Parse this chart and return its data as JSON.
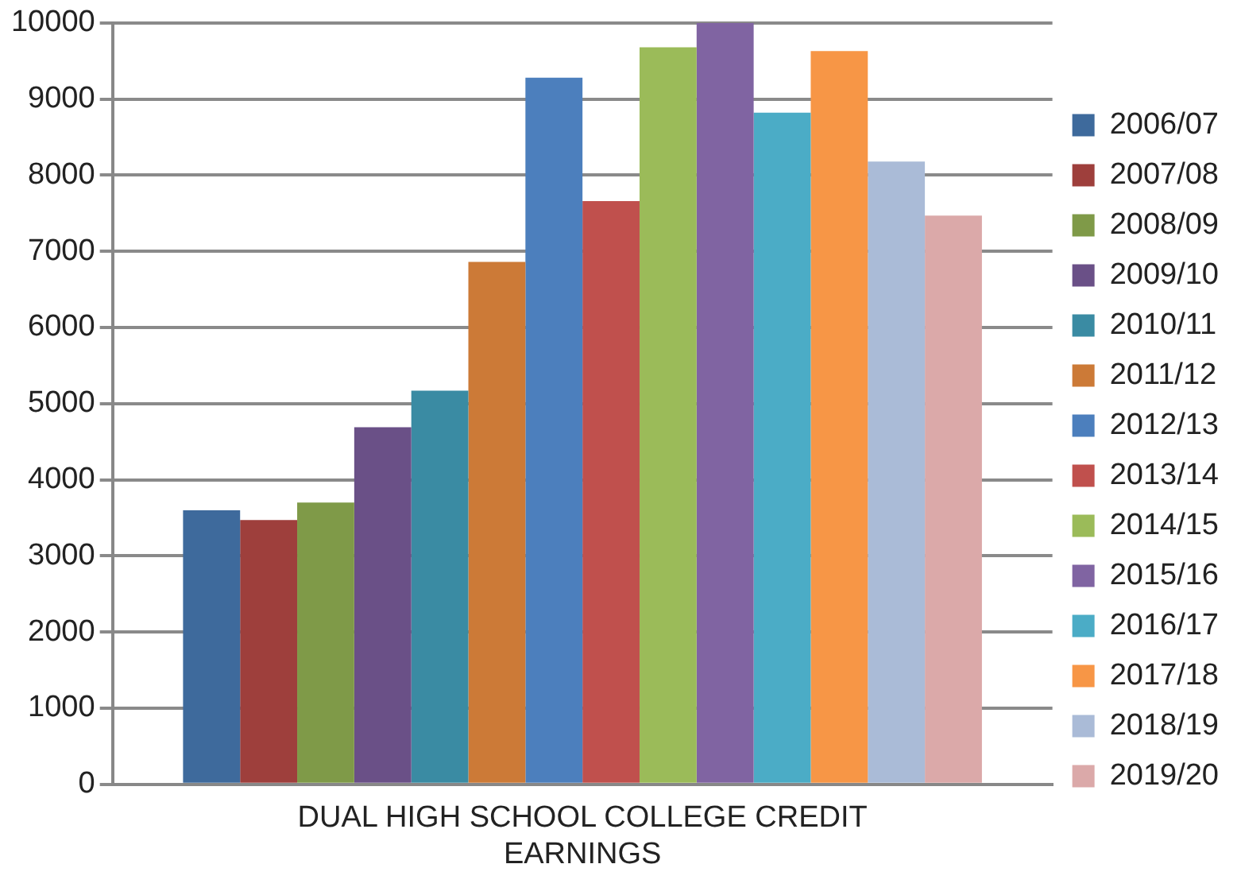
{
  "chart_data": {
    "type": "bar",
    "categories": [
      "DUAL HIGH SCHOOL COLLEGE CREDIT EARNINGS"
    ],
    "series": [
      {
        "name": "2006/07",
        "color": "#3e6a9c",
        "values": [
          3600
        ]
      },
      {
        "name": "2007/08",
        "color": "#9e3f3c",
        "values": [
          3470
        ]
      },
      {
        "name": "2008/09",
        "color": "#7f9a48",
        "values": [
          3700
        ]
      },
      {
        "name": "2009/10",
        "color": "#6a5087",
        "values": [
          4690
        ]
      },
      {
        "name": "2010/11",
        "color": "#3a8ba3",
        "values": [
          5170
        ]
      },
      {
        "name": "2011/12",
        "color": "#cc7a37",
        "values": [
          6860
        ]
      },
      {
        "name": "2012/13",
        "color": "#4c7fbd",
        "values": [
          9280
        ]
      },
      {
        "name": "2013/14",
        "color": "#c0504d",
        "values": [
          7660
        ]
      },
      {
        "name": "2014/15",
        "color": "#9bbb59",
        "values": [
          9680
        ]
      },
      {
        "name": "2015/16",
        "color": "#8064a2",
        "values": [
          10000
        ]
      },
      {
        "name": "2016/17",
        "color": "#4bacc6",
        "values": [
          8820
        ]
      },
      {
        "name": "2017/18",
        "color": "#f79646",
        "values": [
          9630
        ]
      },
      {
        "name": "2018/19",
        "color": "#aabbd7",
        "values": [
          8180
        ]
      },
      {
        "name": "2019/20",
        "color": "#dba9a9",
        "values": [
          7470
        ]
      }
    ],
    "ylim": [
      0,
      10000
    ],
    "yticks": [
      0,
      1000,
      2000,
      3000,
      4000,
      5000,
      6000,
      7000,
      8000,
      9000,
      10000
    ],
    "grid": "y",
    "legend": "right"
  }
}
